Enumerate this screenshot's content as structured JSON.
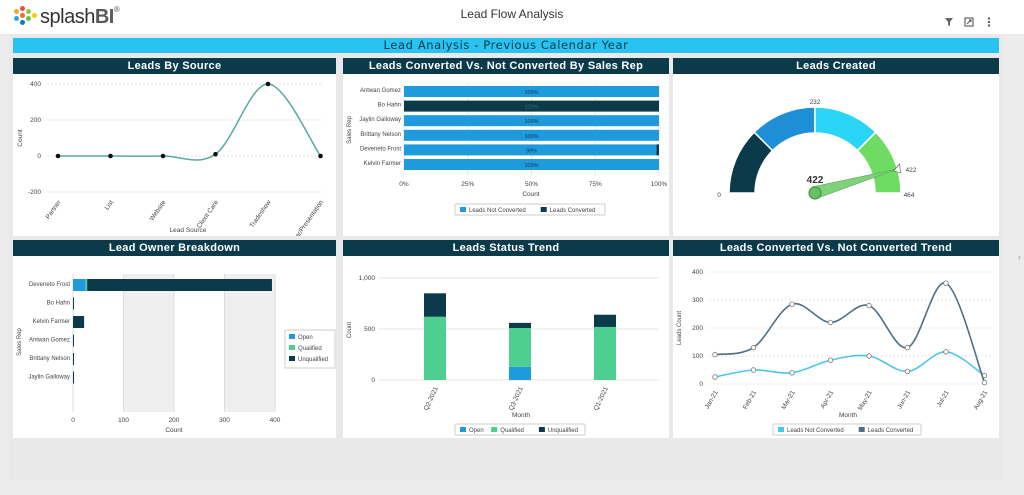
{
  "app": {
    "logo_text": "splash",
    "logo_bold": "BI",
    "logo_reg": "®",
    "title": "Lead Flow Analysis"
  },
  "toolbar": {
    "filter_icon": "filter-icon",
    "expand_icon": "expand-icon",
    "menu_icon": "kebab-menu-icon"
  },
  "banner": "Lead Analysis - Previous Calendar Year",
  "colors": {
    "navy": "#0b3a4b",
    "blue": "#1e9bdc",
    "cyan": "#2ad4f5",
    "green": "#4ccf8f",
    "lightgreen": "#6edc63",
    "teal": "#5aa8a0"
  },
  "panels": {
    "leads_by_source": "Leads By Source",
    "converted_by_rep": "Leads Converted Vs. Not Converted By Sales Rep",
    "leads_created": "Leads Created",
    "owner_breakdown": "Lead Owner Breakdown",
    "status_trend": "Leads Status Trend",
    "converted_trend": "Leads Converted Vs. Not Converted Trend"
  },
  "chart_data": [
    {
      "id": "leads_by_source",
      "type": "line",
      "categories": [
        "Partner",
        "List",
        "Website",
        "Client Care",
        "Tradeshow",
        "Seminar/Presentation"
      ],
      "values": [
        0,
        0,
        0,
        10,
        400,
        0
      ],
      "xlabel": "Lead Source",
      "ylabel": "Count",
      "ylim": [
        -200,
        400
      ],
      "yticks": [
        "400",
        "200",
        "0",
        "-200"
      ]
    },
    {
      "id": "converted_by_rep",
      "type": "bar",
      "categories": [
        "Antwan Gomez",
        "Bo Hahn",
        "Jaylin Galloway",
        "Brittany Nelson",
        "Deveneto Frost",
        "Kelvin Farmer"
      ],
      "series": [
        {
          "name": "Leads Not Converted",
          "values": [
            100,
            0,
            100,
            100,
            99,
            100
          ]
        },
        {
          "name": "Leads Converted",
          "values": [
            0,
            100,
            0,
            0,
            1,
            0
          ]
        }
      ],
      "labels": [
        "100%",
        "100%",
        "100%",
        "100%",
        "99%",
        "100%"
      ],
      "xticks": [
        "0%",
        "25%",
        "50%",
        "75%",
        "100%"
      ],
      "xlabel": "Count",
      "ylabel": "Sales Rep"
    },
    {
      "id": "leads_created",
      "type": "gauge",
      "value": 422,
      "value_label": "422",
      "marker_label": "422",
      "min": 0,
      "max": 464,
      "min_label": "0",
      "max_label": "464",
      "tick_label": "232"
    },
    {
      "id": "owner_breakdown",
      "type": "bar",
      "categories": [
        "Deveneto Frost",
        "Bo Hahn",
        "Kelvin Farmer",
        "Antwan Gomez",
        "Brittany Nelson",
        "Jaylin Galloway"
      ],
      "series": [
        {
          "name": "Open",
          "values": [
            25,
            0,
            0,
            0,
            0,
            0
          ]
        },
        {
          "name": "Qualified",
          "values": [
            3,
            0,
            0,
            0,
            0,
            0
          ]
        },
        {
          "name": "Unqualified",
          "values": [
            366,
            2,
            22,
            2,
            2,
            2
          ]
        }
      ],
      "xticks": [
        "0",
        "100",
        "200",
        "300",
        "400"
      ],
      "xlim": [
        0,
        400
      ],
      "xlabel": "Count",
      "ylabel": "Sales Rep"
    },
    {
      "id": "status_trend",
      "type": "bar",
      "categories": [
        "Q2-2021",
        "Q3-2021",
        "Q1-2021"
      ],
      "series": [
        {
          "name": "Open",
          "values": [
            0,
            130,
            0
          ]
        },
        {
          "name": "Qualified",
          "values": [
            620,
            380,
            520
          ]
        },
        {
          "name": "Unqualified",
          "values": [
            230,
            50,
            120
          ]
        }
      ],
      "yticks": [
        "1,000",
        "500",
        "0"
      ],
      "ylim": [
        0,
        1000
      ],
      "xlabel": "Month",
      "ylabel": "Count"
    },
    {
      "id": "converted_trend",
      "type": "line",
      "categories": [
        "Jan-21",
        "Feb-21",
        "Mar-21",
        "Apr-21",
        "May-21",
        "Jun-21",
        "Jul-21",
        "Aug-21"
      ],
      "series": [
        {
          "name": "Leads Not Converted",
          "values": [
            25,
            50,
            40,
            85,
            100,
            45,
            115,
            30
          ]
        },
        {
          "name": "Leads Converted",
          "values": [
            105,
            130,
            285,
            220,
            280,
            130,
            360,
            5
          ]
        }
      ],
      "yticks": [
        "400",
        "300",
        "200",
        "100",
        "0"
      ],
      "ylim": [
        0,
        400
      ],
      "xlabel": "Month",
      "ylabel": "Leads Count"
    }
  ]
}
